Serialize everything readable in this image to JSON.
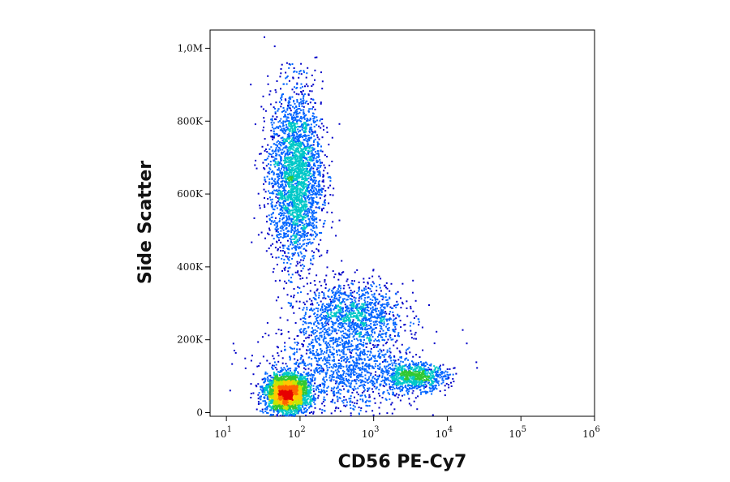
{
  "chart_data": {
    "type": "scatter",
    "subtype": "flow-cytometry-density-dot-plot",
    "xlabel": "CD56 PE-Cy7",
    "ylabel": "Side Scatter",
    "x_scale": "log",
    "xlim": [
      6,
      1000000
    ],
    "ylim": [
      -10000,
      1050000
    ],
    "x_ticks": [
      {
        "value": 10,
        "base": "10",
        "exp": "1"
      },
      {
        "value": 100,
        "base": "10",
        "exp": "2"
      },
      {
        "value": 1000,
        "base": "10",
        "exp": "3"
      },
      {
        "value": 10000,
        "base": "10",
        "exp": "4"
      },
      {
        "value": 100000,
        "base": "10",
        "exp": "5"
      },
      {
        "value": 1000000,
        "base": "10",
        "exp": "6"
      }
    ],
    "y_ticks": [
      {
        "value": 0,
        "label": "0"
      },
      {
        "value": 200000,
        "label": "200K"
      },
      {
        "value": 400000,
        "label": "400K"
      },
      {
        "value": 600000,
        "label": "600K"
      },
      {
        "value": 800000,
        "label": "800K"
      },
      {
        "value": 1000000,
        "label": "1,0M"
      }
    ],
    "grid": false,
    "density_colormap": [
      "#0000c8",
      "#0064ff",
      "#00c8c8",
      "#32c832",
      "#c8e600",
      "#ffc800",
      "#ff6400",
      "#e60000"
    ],
    "populations": [
      {
        "center_x": 65,
        "center_y": 55000,
        "spread_log10_x": 0.14,
        "spread_y": 25000,
        "weight": 0.34
      },
      {
        "center_x": 85,
        "center_y": 650000,
        "spread_log10_x": 0.18,
        "spread_y": 120000,
        "weight": 0.3
      },
      {
        "center_x": 500,
        "center_y": 270000,
        "spread_log10_x": 0.35,
        "spread_y": 45000,
        "weight": 0.13
      },
      {
        "center_x": 3500,
        "center_y": 100000,
        "spread_log10_x": 0.22,
        "spread_y": 18000,
        "weight": 0.09
      },
      {
        "center_x": 400,
        "center_y": 120000,
        "spread_log10_x": 0.5,
        "spread_y": 60000,
        "weight": 0.14
      }
    ]
  }
}
